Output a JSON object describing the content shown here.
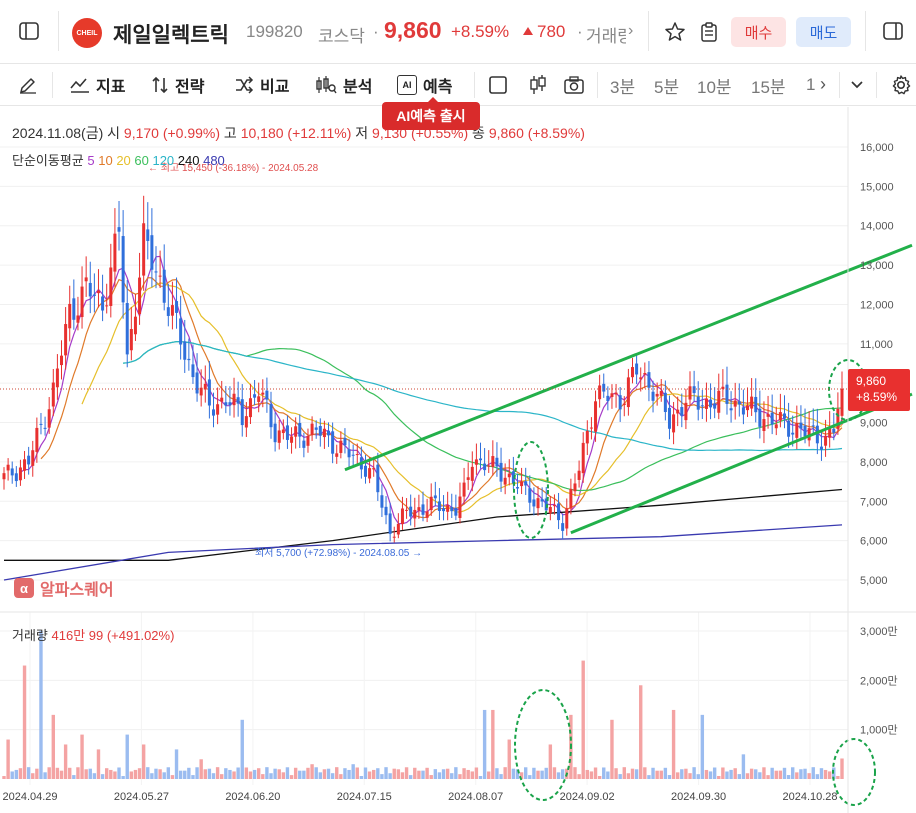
{
  "header": {
    "logo_text": "CHEIL",
    "name": "제일일렉트릭",
    "code": "199820",
    "market": "코스닥",
    "price": "9,860",
    "change_pct": "+8.59%",
    "change_amt": "780",
    "trade_label": "거래량",
    "buy_label": "매수",
    "sell_label": "매도"
  },
  "toolbar": {
    "indicator": "지표",
    "strategy": "전략",
    "compare": "비교",
    "analysis": "분석",
    "forecast": "예측",
    "ai_badge": "AI",
    "timeframes": [
      "3분",
      "5분",
      "10분",
      "15분",
      "1"
    ],
    "tooltip": "AI예측 출시"
  },
  "legend": {
    "date": "2024.11.08(금)",
    "open_label": "시",
    "open": "9,170 (+0.99%)",
    "high_label": "고",
    "high": "10,180 (+12.11%)",
    "low_label": "저",
    "low": "9,130 (+0.55%)",
    "close_label": "종",
    "close": "9,860 (+8.59%)",
    "ma_title": "단순이동평균",
    "ma": [
      {
        "label": "5",
        "color": "#a63bc8"
      },
      {
        "label": "10",
        "color": "#e07a2a"
      },
      {
        "label": "20",
        "color": "#e6bf2a"
      },
      {
        "label": "60",
        "color": "#3bbf5c"
      },
      {
        "label": "120",
        "color": "#2bb5c8"
      },
      {
        "label": "240",
        "color": "#111111"
      },
      {
        "label": "480",
        "color": "#3a3ab0"
      }
    ]
  },
  "volume_legend": {
    "label": "거래량",
    "value": "416만 99 (+491.02%)"
  },
  "watermark": {
    "icon": "α",
    "text": "알파스퀘어"
  },
  "price_tag": {
    "price": "9,860",
    "pct": "+8.59%"
  },
  "chart_data": {
    "type": "candlestick",
    "y_ticks": [
      "16,000",
      "15,000",
      "14,000",
      "13,000",
      "12,000",
      "11,000",
      "10,000",
      "9,000",
      "8,000",
      "7,000",
      "6,000",
      "5,000"
    ],
    "y_range": [
      4500,
      16500
    ],
    "volume_ticks": [
      "3,000만",
      "2,000만",
      "1,000만"
    ],
    "volume_range": [
      0,
      3000
    ],
    "x_labels": [
      "2024.04.29",
      "2024.05.27",
      "2024.06.20",
      "2024.07.15",
      "2024.08.07",
      "2024.09.02",
      "2024.09.30",
      "2024.10.28"
    ],
    "annotations": {
      "max": "최고 15,450 (-36.18%) - 2024.05.28",
      "min": "최저 5,700 (+72.98%) - 2024.08.05"
    },
    "close_anchors": [
      [
        0,
        7600
      ],
      [
        6,
        8000
      ],
      [
        12,
        9800
      ],
      [
        16,
        11800
      ],
      [
        20,
        12400
      ],
      [
        24,
        12000
      ],
      [
        28,
        13800
      ],
      [
        30,
        10600
      ],
      [
        34,
        13600
      ],
      [
        38,
        12600
      ],
      [
        42,
        11400
      ],
      [
        46,
        10200
      ],
      [
        50,
        9400
      ],
      [
        54,
        9600
      ],
      [
        58,
        9200
      ],
      [
        62,
        9800
      ],
      [
        66,
        8800
      ],
      [
        70,
        8600
      ],
      [
        76,
        8800
      ],
      [
        80,
        8500
      ],
      [
        84,
        8200
      ],
      [
        88,
        7900
      ],
      [
        90,
        7600
      ],
      [
        94,
        6200
      ],
      [
        98,
        6700
      ],
      [
        104,
        6900
      ],
      [
        110,
        6800
      ],
      [
        112,
        7200
      ],
      [
        114,
        8100
      ],
      [
        118,
        7900
      ],
      [
        122,
        7700
      ],
      [
        126,
        7300
      ],
      [
        130,
        7000
      ],
      [
        134,
        6700
      ],
      [
        136,
        6500
      ],
      [
        140,
        7800
      ],
      [
        144,
        9700
      ],
      [
        150,
        9600
      ],
      [
        154,
        10300
      ],
      [
        158,
        9900
      ],
      [
        162,
        9000
      ],
      [
        166,
        9600
      ],
      [
        170,
        9500
      ],
      [
        176,
        9600
      ],
      [
        180,
        9400
      ],
      [
        184,
        9200
      ],
      [
        188,
        9000
      ],
      [
        192,
        8900
      ],
      [
        196,
        8700
      ],
      [
        200,
        8600
      ],
      [
        202,
        8800
      ],
      [
        204,
        9860
      ]
    ],
    "volume_spikes": [
      [
        1,
        800
      ],
      [
        5,
        2300
      ],
      [
        9,
        3000
      ],
      [
        12,
        1300
      ],
      [
        15,
        700
      ],
      [
        19,
        900
      ],
      [
        23,
        600
      ],
      [
        30,
        900
      ],
      [
        34,
        700
      ],
      [
        42,
        600
      ],
      [
        48,
        400
      ],
      [
        58,
        1200
      ],
      [
        75,
        300
      ],
      [
        85,
        300
      ],
      [
        105,
        200
      ],
      [
        117,
        1400
      ],
      [
        119,
        1400
      ],
      [
        123,
        800
      ],
      [
        133,
        700
      ],
      [
        138,
        1300
      ],
      [
        141,
        2400
      ],
      [
        148,
        1200
      ],
      [
        155,
        1900
      ],
      [
        163,
        1400
      ],
      [
        170,
        1300
      ],
      [
        180,
        500
      ],
      [
        204,
        416
      ]
    ],
    "ma_periods": [
      5,
      10,
      20,
      60,
      120,
      240,
      480
    ],
    "channel_upper": [
      [
        83,
        7800
      ],
      [
        204,
        12800
      ]
    ],
    "channel_lower": [
      [
        138,
        6200
      ],
      [
        204,
        9000
      ]
    ],
    "ma240_path": [
      [
        0,
        5500
      ],
      [
        40,
        5500
      ],
      [
        80,
        6000
      ],
      [
        120,
        6600
      ],
      [
        160,
        6900
      ],
      [
        204,
        7300
      ]
    ],
    "ma480_path": [
      [
        0,
        5000
      ],
      [
        40,
        5700
      ],
      [
        80,
        5900
      ],
      [
        120,
        6000
      ],
      [
        160,
        6100
      ],
      [
        204,
        6400
      ]
    ]
  }
}
